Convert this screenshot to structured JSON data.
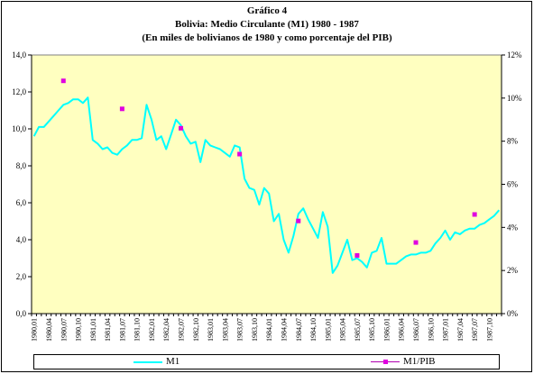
{
  "chart_data": {
    "type": "line",
    "title_lines": [
      "Gráfico 4",
      "Bolivia: Medio Circulante (M1) 1980 - 1987",
      "(En miles de bolivianos de 1980 y como porcentaje del PIB)"
    ],
    "x": [
      "1980,01",
      "1980,02",
      "1980,03",
      "1980,04",
      "1980,05",
      "1980,06",
      "1980,07",
      "1980,08",
      "1980,09",
      "1980,10",
      "1980,11",
      "1980,12",
      "1981,01",
      "1981,02",
      "1981,03",
      "1981,04",
      "1981,05",
      "1981,06",
      "1981,07",
      "1981,08",
      "1981,09",
      "1981,10",
      "1981,11",
      "1981,12",
      "1982,01",
      "1982,02",
      "1982,03",
      "1982,04",
      "1982,05",
      "1982,06",
      "1982,07",
      "1982,08",
      "1982,09",
      "1982,10",
      "1982,11",
      "1982,12",
      "1983,01",
      "1983,02",
      "1983,03",
      "1983,04",
      "1983,05",
      "1983,06",
      "1983,07",
      "1983,08",
      "1983,09",
      "1983,10",
      "1983,11",
      "1983,12",
      "1984,01",
      "1984,02",
      "1984,03",
      "1984,04",
      "1984,05",
      "1984,06",
      "1984,07",
      "1984,08",
      "1984,09",
      "1984,10",
      "1984,11",
      "1984,12",
      "1985,01",
      "1985,02",
      "1985,03",
      "1985,04",
      "1985,05",
      "1985,06",
      "1985,07",
      "1985,08",
      "1985,09",
      "1985,10",
      "1985,11",
      "1985,12",
      "1986,01",
      "1986,02",
      "1986,03",
      "1986,04",
      "1986,05",
      "1986,06",
      "1986,07",
      "1986,08",
      "1986,09",
      "1986,10",
      "1986,11",
      "1986,12",
      "1987,01",
      "1987,02",
      "1987,03",
      "1987,04",
      "1987,05",
      "1987,06",
      "1987,07",
      "1987,08",
      "1987,09",
      "1987,10",
      "1987,11",
      "1987,12"
    ],
    "x_tick_labels": [
      "1980,01",
      "1980,04",
      "1980,07",
      "1980,10",
      "1981,01",
      "1981,04",
      "1981,07",
      "1981,10",
      "1982,01",
      "1982,04",
      "1982,07",
      "1982,10",
      "1983,01",
      "1983,04",
      "1983,07",
      "1983,10",
      "1984,01",
      "1984,04",
      "1984,07",
      "1984,10",
      "1985,01",
      "1985,04",
      "1985,07",
      "1985,10",
      "1986,01",
      "1986,04",
      "1986,07",
      "1986,10",
      "1987,01",
      "1987,04",
      "1987,07",
      "1987,10"
    ],
    "series": [
      {
        "name": "M1",
        "axis": "left",
        "color": "#00ffff",
        "values": [
          9.6,
          10.1,
          10.1,
          10.4,
          10.7,
          11.0,
          11.3,
          11.4,
          11.6,
          11.6,
          11.4,
          11.7,
          9.4,
          9.2,
          8.9,
          9.0,
          8.7,
          8.6,
          8.9,
          9.1,
          9.4,
          9.4,
          9.5,
          11.3,
          10.5,
          9.4,
          9.6,
          8.9,
          9.7,
          10.5,
          10.2,
          9.6,
          9.2,
          9.3,
          8.2,
          9.4,
          9.1,
          9.0,
          8.9,
          8.7,
          8.5,
          9.1,
          9.0,
          7.3,
          6.8,
          6.7,
          5.9,
          6.8,
          6.5,
          5.0,
          5.4,
          4.0,
          3.3,
          4.2,
          5.4,
          5.7,
          5.1,
          4.6,
          4.1,
          5.5,
          4.7,
          2.2,
          2.6,
          3.3,
          4.0,
          2.9,
          3.0,
          2.8,
          2.5,
          3.3,
          3.4,
          4.1,
          2.7,
          2.7,
          2.7,
          2.9,
          3.1,
          3.2,
          3.2,
          3.3,
          3.3,
          3.4,
          3.8,
          4.1,
          4.5,
          4.0,
          4.4,
          4.3,
          4.5,
          4.6,
          4.6,
          4.8,
          4.9,
          5.1,
          5.3,
          5.6
        ]
      },
      {
        "name": "M1/PIB",
        "axis": "right",
        "color": "#e000e0",
        "points": [
          {
            "x": "1980,07",
            "y": 10.8
          },
          {
            "x": "1981,07",
            "y": 9.5
          },
          {
            "x": "1982,07",
            "y": 8.6
          },
          {
            "x": "1983,07",
            "y": 7.4
          },
          {
            "x": "1984,07",
            "y": 4.3
          },
          {
            "x": "1985,07",
            "y": 2.7
          },
          {
            "x": "1986,07",
            "y": 3.3
          },
          {
            "x": "1987,07",
            "y": 4.6
          }
        ]
      }
    ],
    "y_left": {
      "min": 0,
      "max": 14,
      "step": 2,
      "ticks": [
        "0,0",
        "2,0",
        "4,0",
        "6,0",
        "8,0",
        "10,0",
        "12,0",
        "14,0"
      ]
    },
    "y_right": {
      "min": 0,
      "max": 12,
      "step": 2,
      "ticks": [
        "0%",
        "2%",
        "4%",
        "6%",
        "8%",
        "10%",
        "12%"
      ]
    },
    "plot_background": "#ffffc0",
    "grid": false,
    "legend_position": "bottom"
  },
  "legend": {
    "m1_label": "M1",
    "pib_label": "M1/PIB"
  }
}
